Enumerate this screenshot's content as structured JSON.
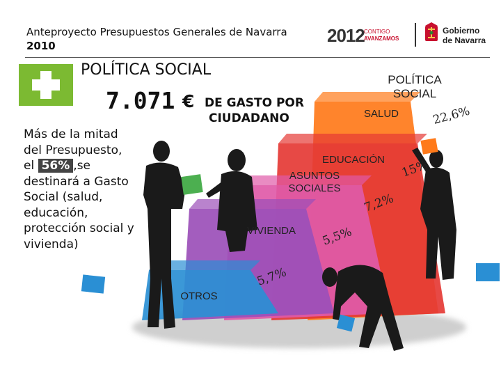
{
  "header": {
    "title_line1": "Anteproyecto Presupuestos Generales de Navarra",
    "title_line2": "2010"
  },
  "logos": {
    "campaign_year": "2012",
    "campaign_line1": "CONTIGO",
    "campaign_line2": "AVANZAMOS",
    "government_line1": "Gobierno",
    "government_line2": "de Navarra"
  },
  "section": {
    "title": "POLÍTICA SOCIAL",
    "spend_amount": "7.071",
    "spend_currency": "€",
    "spend_label_line1": "DE GASTO POR",
    "spend_label_line2": "CIUDADANO"
  },
  "description": {
    "line1": "Más de la mitad",
    "line2": "del Presupuesto,",
    "line3_before": "el",
    "highlight": "56%",
    "line3_after": ",se",
    "line4": "destinará a Gasto",
    "line5": "Social (salud,",
    "line6": "educación,",
    "line7": "protección social y",
    "line8": "vivienda)"
  },
  "chart_data": {
    "type": "bar",
    "categories": [
      "OTROS",
      "VIVIENDA",
      "ASUNTOS SOCIALES",
      "EDUCACIÓN",
      "SALUD"
    ],
    "values": [
      5.7,
      5.5,
      7.2,
      15,
      22.6
    ],
    "value_labels": [
      "5,7%",
      "5,5%",
      "7,2%",
      "15%",
      "22,6%"
    ],
    "title": "",
    "top_label": "POLÍTICA SOCIAL",
    "colors": [
      "#2a8fd4",
      "#9b4fb8",
      "#e05aa8",
      "#e53935",
      "#ff7a1a"
    ]
  },
  "colors": {
    "accent_green": "#7cba32",
    "brand_red": "#c8102e"
  }
}
